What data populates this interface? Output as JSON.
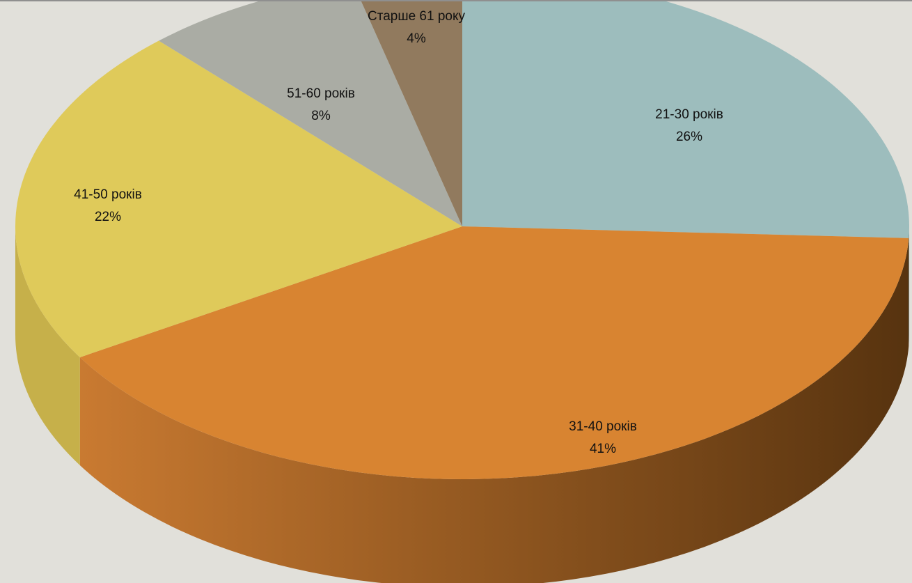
{
  "chart_data": {
    "type": "pie",
    "style": "3d",
    "legend": "none",
    "slices": [
      {
        "label": "21-30 років",
        "value": 26,
        "value_label": "26%",
        "color": "#9dbdbd",
        "side_color": "#6f8a8a"
      },
      {
        "label": "31-40 років",
        "value": 41,
        "value_label": "41%",
        "color": "#d88431",
        "side_color": "#b86d27"
      },
      {
        "label": "41-50 років",
        "value": 22,
        "value_label": "22%",
        "color": "#dfca5a",
        "side_color": "#c6b04a"
      },
      {
        "label": "51-60 років",
        "value": 8,
        "value_label": "8%",
        "color": "#aaaca4",
        "side_color": "#85877f"
      },
      {
        "label": "Старше 61 року",
        "value": 4,
        "value_label": "4%",
        "color": "#917a5e",
        "side_color": "#6e5c46"
      }
    ],
    "colors": {
      "background": "#e1e0da",
      "side_dark": "#57330f",
      "side_light": "#c97a31"
    }
  }
}
